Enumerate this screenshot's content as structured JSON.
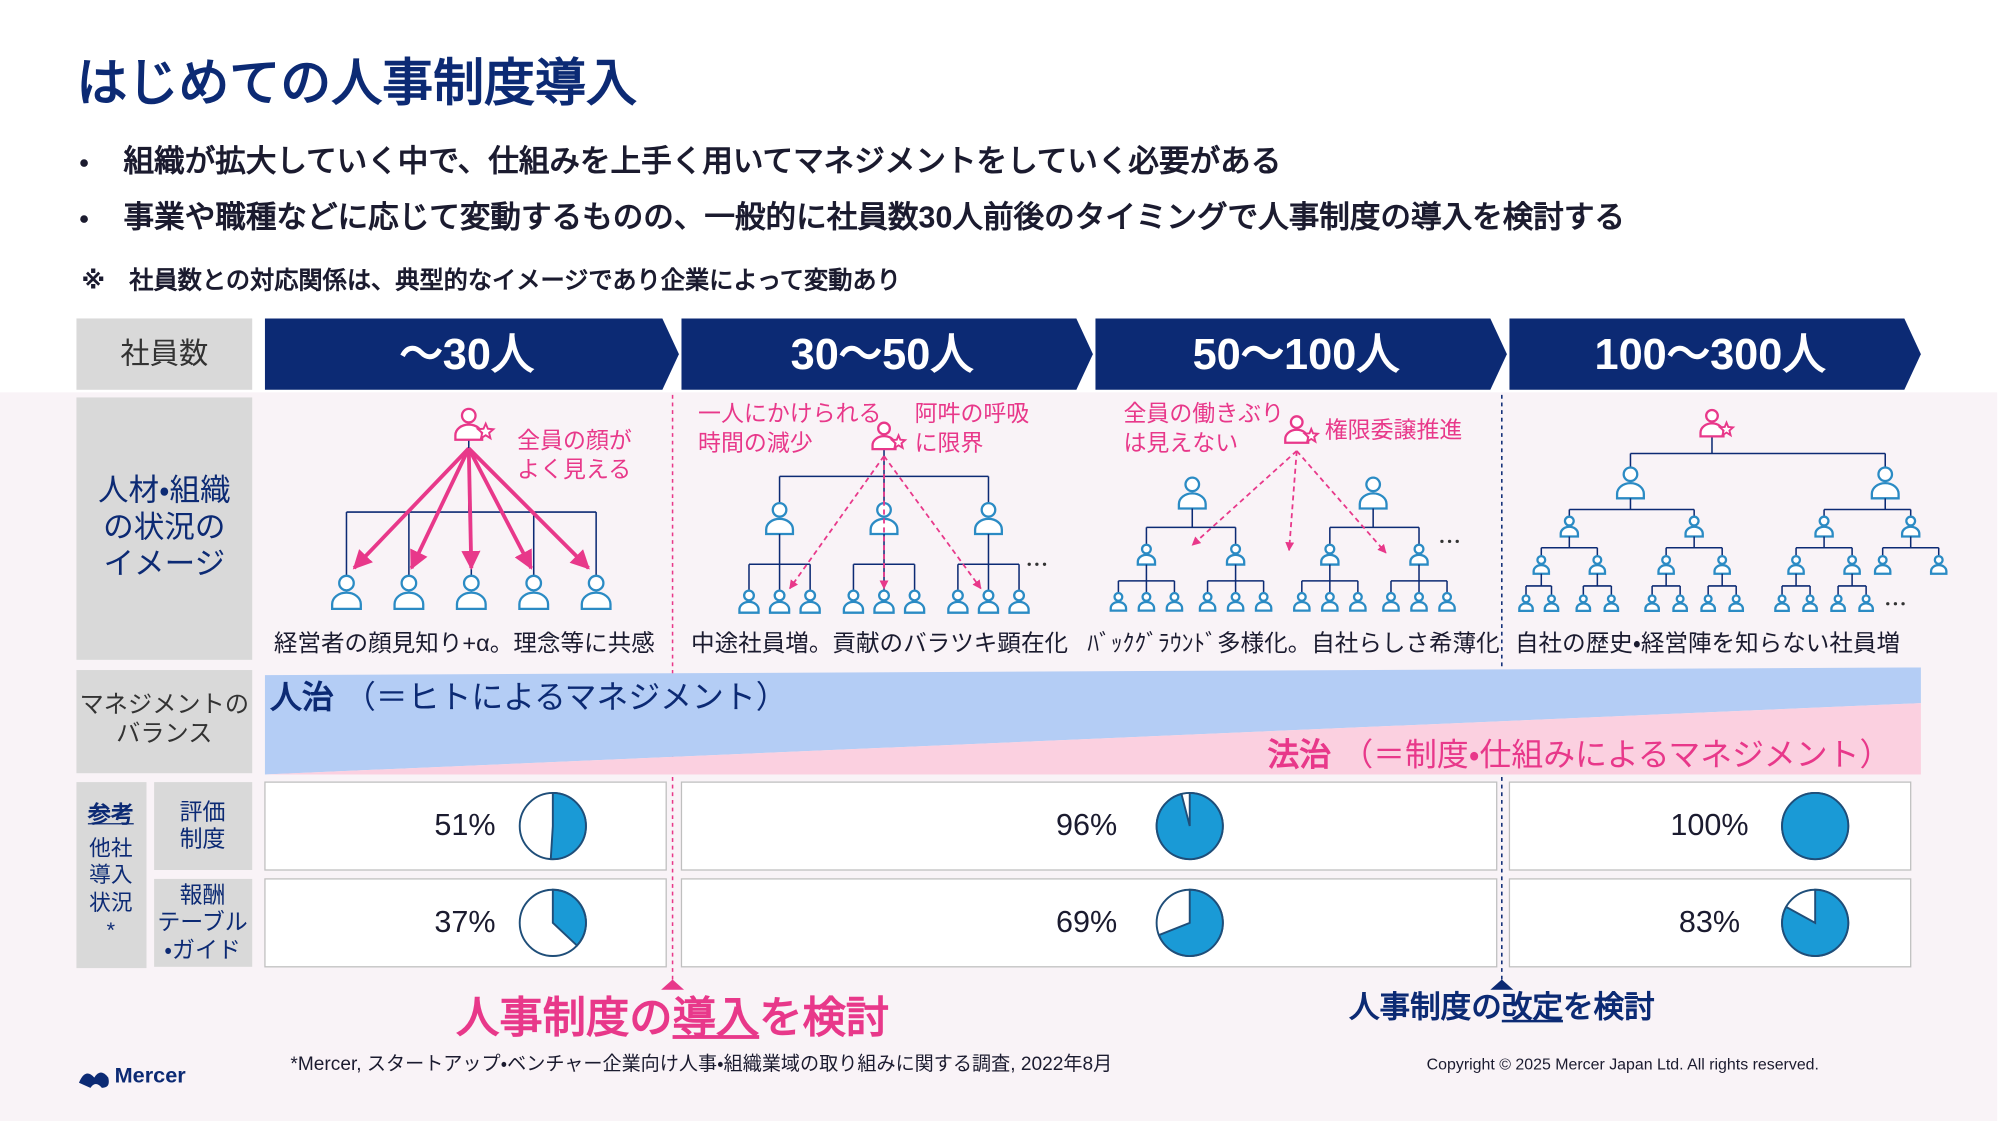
{
  "header": {
    "title": "はじめての人事制度導入",
    "bullets": [
      "組織が拡大していく中で、仕組みを上手く用いてマネジメントをしていく必要がある",
      "事業や職種などに応じて変動するものの、一般的に社員数30人前後のタイミングで人事制度の導入を検討する"
    ],
    "note": "※　社員数との対応関係は、典型的なイメージであり企業によって変動あり"
  },
  "row_labels": {
    "headcount": "社員数",
    "situation": "人材・組織\nの状況の\nイメージ",
    "balance": "マネジメントの\nバランス"
  },
  "stages": [
    {
      "label": "～30人",
      "annotations": [
        "全員の顔が\nよく見える"
      ],
      "caption": "経営者の顔見知り+α。理念等に共感"
    },
    {
      "label": "30～50人",
      "annotations": [
        "一人にかけられる\n時間の減少",
        "阿吽の呼吸\nに限界"
      ],
      "caption": "中途社員増。貢献のバラツキ顕在化"
    },
    {
      "label": "50～100人",
      "annotations": [
        "全員の働きぶり\nは見えない",
        "権限委譲推進"
      ],
      "caption": "ﾊﾞｯｸｸﾞﾗｳﾝﾄﾞ多様化。自社らしさ希薄化"
    },
    {
      "label": "100～300人",
      "annotations": [],
      "caption": "自社の歴史・経営陣を知らない社員増"
    }
  ],
  "balance": {
    "people": {
      "name": "人治",
      "desc": "（＝ヒトによるマネジメント）"
    },
    "rules": {
      "name": "法治",
      "desc": "（＝制度・仕組みによるマネジメント）"
    }
  },
  "adoption": {
    "title": "参考",
    "subtitle": "他社\n導入\n状況\n*",
    "rows": [
      {
        "label": "評価\n制度",
        "cells": [
          {
            "value": 51,
            "label": "51%"
          },
          {
            "value": 96,
            "label": "96%"
          },
          {
            "value": 100,
            "label": "100%"
          }
        ]
      },
      {
        "label": "報酬\nテーブル\n・ガイド",
        "cells": [
          {
            "value": 37,
            "label": "37%"
          },
          {
            "value": 69,
            "label": "69%"
          },
          {
            "value": 83,
            "label": "83%"
          }
        ]
      }
    ]
  },
  "milestones": [
    {
      "parts": [
        "人事制度の",
        "導入",
        "を検討"
      ]
    },
    {
      "parts": [
        "人事制度の",
        "改定",
        "を検討"
      ]
    }
  ],
  "footer": {
    "logo": "Mercer",
    "source": "*Mercer, スタートアップ・ベンチャー企業向け人事・組織業域の取り組みに関する調査, 2022年8月",
    "copyright": "Copyright © 2025 Mercer Japan Ltd. All rights reserved."
  }
}
